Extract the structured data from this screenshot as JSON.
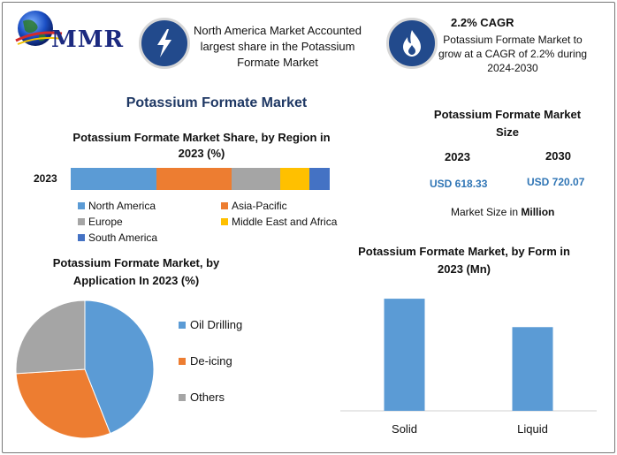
{
  "brand": {
    "logo_text": "MMR"
  },
  "header": {
    "info1": "North America Market Accounted largest share in the Potassium Formate Market",
    "cagr_title": "2.2% CAGR",
    "cagr_desc": "Potassium Formate Market to grow at a CAGR of 2.2% during 2024-2030"
  },
  "main_title": "Potassium Formate Market",
  "market_size": {
    "title": "Potassium Formate Market Size",
    "year_a": "2023",
    "year_b": "2030",
    "value_a": "USD 618.33",
    "value_b": "USD 720.07",
    "unit_prefix": "Market Size in",
    "unit_bold": "Million"
  },
  "colors": {
    "blue": "#5b9bd5",
    "orange": "#ed7d31",
    "gray": "#a5a5a5",
    "yellow": "#ffc000",
    "darkblue": "#4472c4",
    "badge": "#224a8c"
  },
  "icons": [
    "globe-icon",
    "lightning-icon",
    "flame-icon"
  ],
  "chart_data": [
    {
      "type": "bar",
      "orientation": "horizontal-stacked",
      "title": "Potassium Formate Market Share, by Region in 2023 (%)",
      "categories": [
        "2023"
      ],
      "series": [
        {
          "name": "North America",
          "values": [
            33
          ],
          "color": "#5b9bd5"
        },
        {
          "name": "Asia-Pacific",
          "values": [
            29
          ],
          "color": "#ed7d31"
        },
        {
          "name": "Europe",
          "values": [
            19
          ],
          "color": "#a5a5a5"
        },
        {
          "name": "Middle East and Africa",
          "values": [
            11
          ],
          "color": "#ffc000"
        },
        {
          "name": "South America",
          "values": [
            8
          ],
          "color": "#4472c4"
        }
      ],
      "legend": "bottom"
    },
    {
      "type": "pie",
      "title": "Potassium Formate Market, by Application In 2023 (%)",
      "slices": [
        {
          "name": "Oil Drilling",
          "value": 44,
          "color": "#5b9bd5"
        },
        {
          "name": "De-icing",
          "value": 30,
          "color": "#ed7d31"
        },
        {
          "name": "Others",
          "value": 26,
          "color": "#a5a5a5"
        }
      ],
      "legend": "right"
    },
    {
      "type": "bar",
      "title": "Potassium Formate Market, by Form in 2023 (Mn)",
      "categories": [
        "Solid",
        "Liquid"
      ],
      "values": [
        355,
        265
      ],
      "ylim": [
        0,
        400
      ],
      "color": "#5b9bd5"
    }
  ]
}
